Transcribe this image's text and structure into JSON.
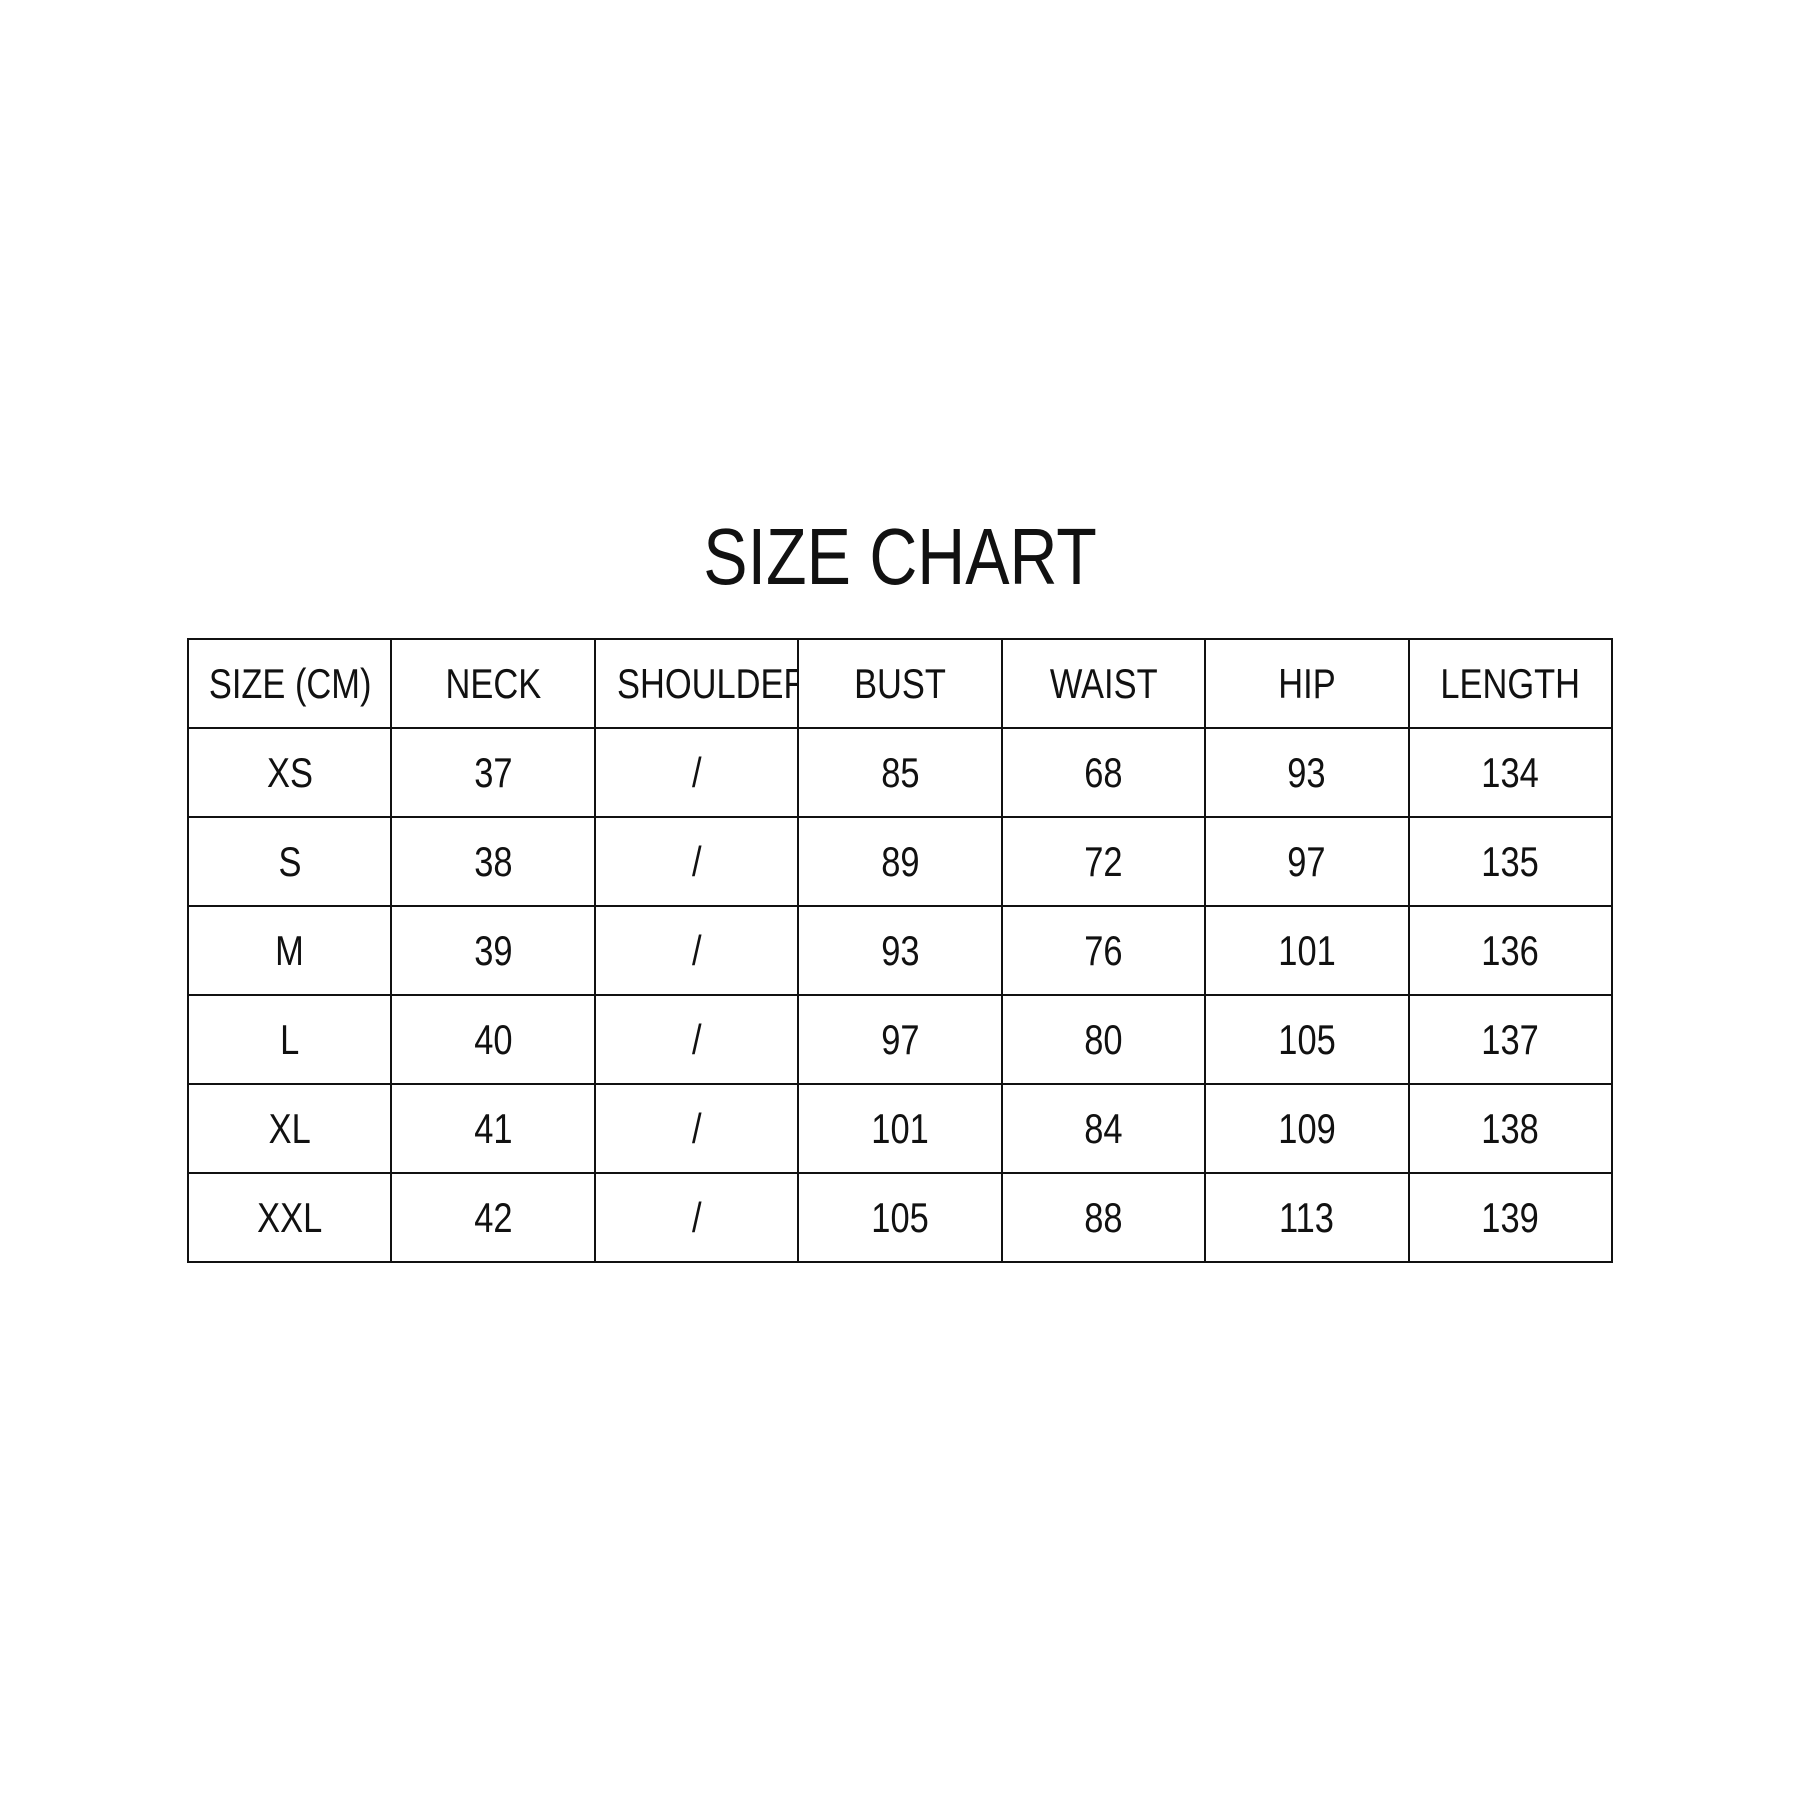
{
  "title": "SIZE CHART",
  "headers": [
    "SIZE (CM)",
    "NECK",
    "SHOULDER",
    "BUST",
    "WAIST",
    "HIP",
    "LENGTH"
  ],
  "rows": [
    [
      "XS",
      "37",
      "/",
      "85",
      "68",
      "93",
      "134"
    ],
    [
      "S",
      "38",
      "/",
      "89",
      "72",
      "97",
      "135"
    ],
    [
      "M",
      "39",
      "/",
      "93",
      "76",
      "101",
      "136"
    ],
    [
      "L",
      "40",
      "/",
      "97",
      "80",
      "105",
      "137"
    ],
    [
      "XL",
      "41",
      "/",
      "101",
      "84",
      "109",
      "138"
    ],
    [
      "XXL",
      "42",
      "/",
      "105",
      "88",
      "113",
      "139"
    ]
  ]
}
